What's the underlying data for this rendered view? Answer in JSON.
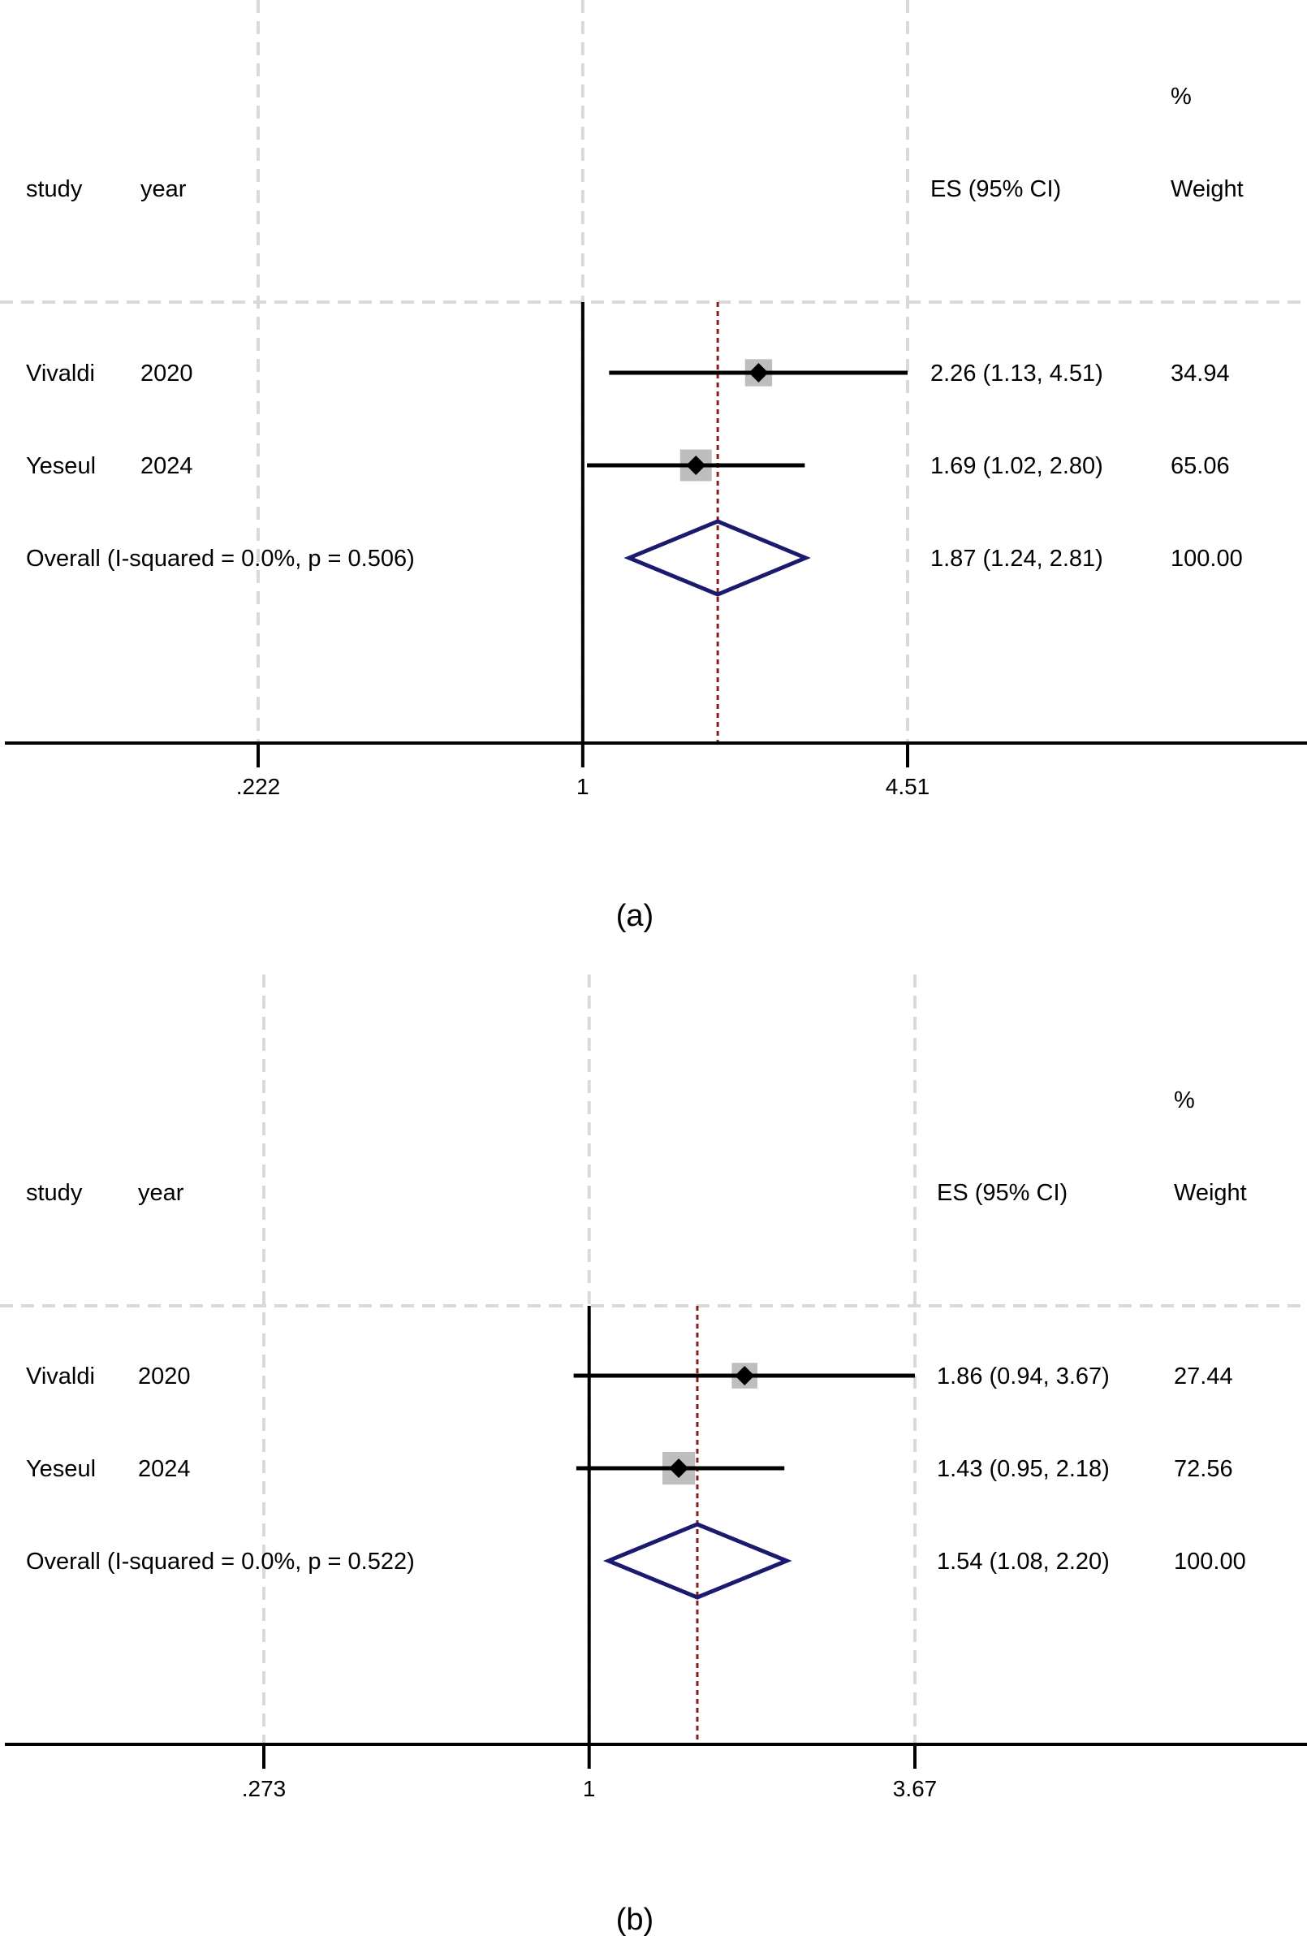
{
  "chart_data": [
    {
      "type": "forest",
      "panel_label": "(a)",
      "headers": {
        "study": "study",
        "year": "year",
        "es": "ES (95% CI)",
        "weight_top": "%",
        "weight": "Weight"
      },
      "axis": {
        "ticks": [
          {
            "value": 0.222,
            "label": ".222"
          },
          {
            "value": 1,
            "label": "1"
          },
          {
            "value": 4.51,
            "label": "4.51"
          }
        ],
        "log_scale": true,
        "range": [
          0.222,
          4.51
        ]
      },
      "studies": [
        {
          "study": "Vivaldi",
          "year": "2020",
          "es": 2.26,
          "ci_low": 1.13,
          "ci_high": 4.51,
          "es_text": "2.26 (1.13, 4.51)",
          "weight": 34.94,
          "weight_text": "34.94"
        },
        {
          "study": "Yeseul",
          "year": "2024",
          "es": 1.69,
          "ci_low": 1.02,
          "ci_high": 2.8,
          "es_text": "1.69 (1.02, 2.80)",
          "weight": 65.06,
          "weight_text": "65.06"
        }
      ],
      "overall": {
        "label": "Overall  (I-squared = 0.0%, p = 0.506)",
        "es": 1.87,
        "ci_low": 1.24,
        "ci_high": 2.81,
        "es_text": "1.87 (1.24, 2.81)",
        "weight_text": "100.00"
      },
      "colors": {
        "diamond": "#1a1a6e",
        "box": "#bebebe",
        "null_line": "#000000",
        "overall_line": "#8b1a1a",
        "grid": "#d9d9d9"
      }
    },
    {
      "type": "forest",
      "panel_label": "(b)",
      "headers": {
        "study": "study",
        "year": "year",
        "es": "ES (95% CI)",
        "weight_top": "%",
        "weight": "Weight"
      },
      "axis": {
        "ticks": [
          {
            "value": 0.273,
            "label": ".273"
          },
          {
            "value": 1,
            "label": "1"
          },
          {
            "value": 3.67,
            "label": "3.67"
          }
        ],
        "log_scale": true,
        "range": [
          0.273,
          3.67
        ]
      },
      "studies": [
        {
          "study": "Vivaldi",
          "year": "2020",
          "es": 1.86,
          "ci_low": 0.94,
          "ci_high": 3.67,
          "es_text": "1.86 (0.94, 3.67)",
          "weight": 27.44,
          "weight_text": "27.44"
        },
        {
          "study": "Yeseul",
          "year": "2024",
          "es": 1.43,
          "ci_low": 0.95,
          "ci_high": 2.18,
          "es_text": "1.43 (0.95, 2.18)",
          "weight": 72.56,
          "weight_text": "72.56"
        }
      ],
      "overall": {
        "label": "Overall  (I-squared = 0.0%, p = 0.522)",
        "es": 1.54,
        "ci_low": 1.08,
        "ci_high": 2.2,
        "es_text": "1.54 (1.08, 2.20)",
        "weight_text": "100.00"
      },
      "colors": {
        "diamond": "#1a1a6e",
        "box": "#bebebe",
        "null_line": "#000000",
        "overall_line": "#8b1a1a",
        "grid": "#d9d9d9"
      }
    }
  ]
}
